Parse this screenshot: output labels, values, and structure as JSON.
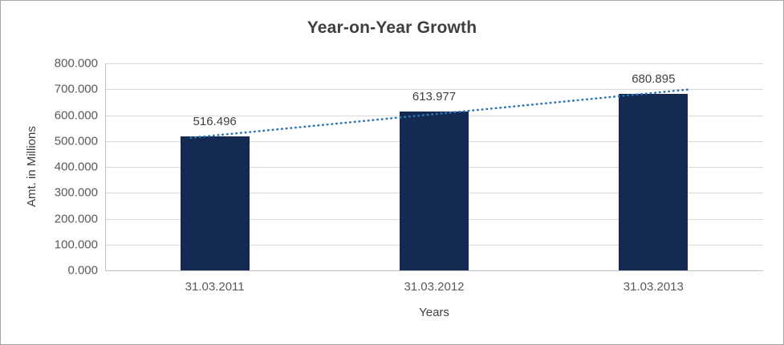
{
  "chart_data": {
    "type": "bar",
    "title": "Year-on-Year Growth",
    "xlabel": "Years",
    "ylabel": "Amt. in Millions",
    "categories": [
      "31.03.2011",
      "31.03.2012",
      "31.03.2013"
    ],
    "values": [
      516.496,
      613.977,
      680.895
    ],
    "value_labels": [
      "516.496",
      "613.977",
      "680.895"
    ],
    "ylim": [
      0,
      800
    ],
    "ytick_step": 100,
    "ytick_labels": [
      "0.000",
      "100.000",
      "200.000",
      "300.000",
      "400.000",
      "500.000",
      "600.000",
      "700.000",
      "800.000"
    ],
    "grid": true,
    "legend": "none",
    "bar_color": "#152A52",
    "trendline": {
      "type": "linear",
      "style": "dotted",
      "color": "#2E75B6"
    },
    "colors": {
      "title": "#3F3F3F",
      "axis_title": "#404040",
      "tick": "#595959",
      "gridline": "#D9D9D9",
      "axis_line": "#BFBFBF",
      "background": "#FFFFFF",
      "border": "#A6A6A6"
    }
  }
}
